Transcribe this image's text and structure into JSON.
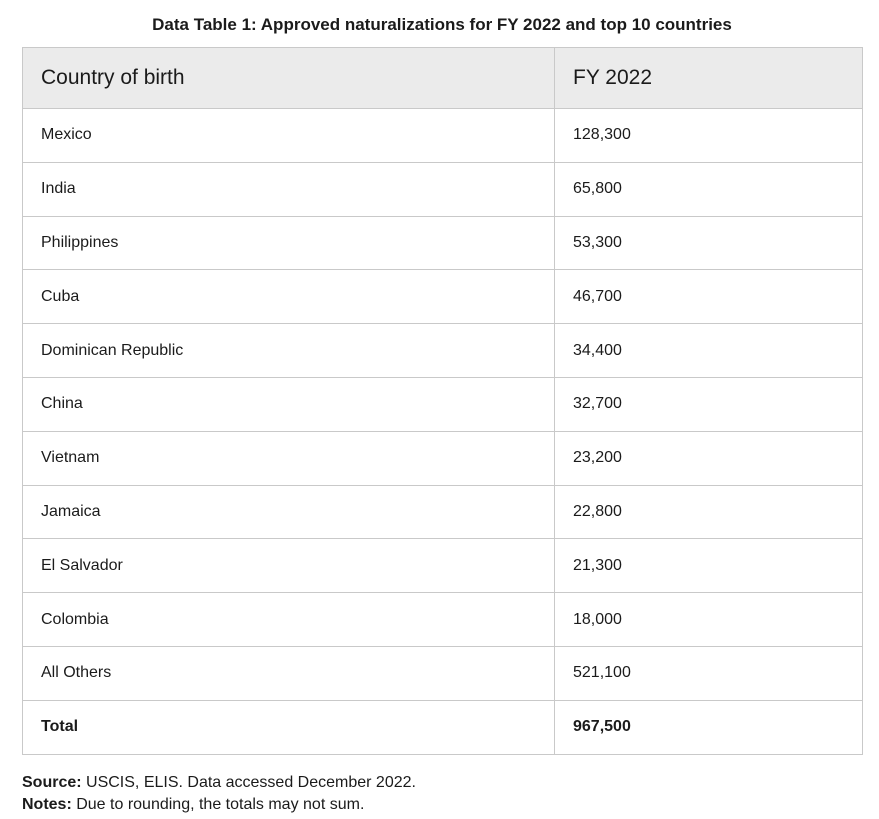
{
  "caption": "Data Table 1: Approved naturalizations for FY 2022 and top 10 countries",
  "table": {
    "headers": [
      "Country of birth",
      "FY 2022"
    ],
    "rows": [
      [
        "Mexico",
        "128,300"
      ],
      [
        "India",
        "65,800"
      ],
      [
        "Philippines",
        "53,300"
      ],
      [
        "Cuba",
        "46,700"
      ],
      [
        "Dominican Republic",
        "34,400"
      ],
      [
        "China",
        "32,700"
      ],
      [
        "Vietnam",
        "23,200"
      ],
      [
        "Jamaica",
        "22,800"
      ],
      [
        "El Salvador",
        "21,300"
      ],
      [
        "Colombia",
        "18,000"
      ],
      [
        "All Others",
        "521,100"
      ]
    ],
    "total": [
      "Total",
      "967,500"
    ]
  },
  "footnotes": {
    "source_label": "Source:",
    "source_text": " USCIS, ELIS. Data accessed December 2022.",
    "notes_label": "Notes:",
    "notes_text": " Due to rounding, the totals may not sum."
  }
}
